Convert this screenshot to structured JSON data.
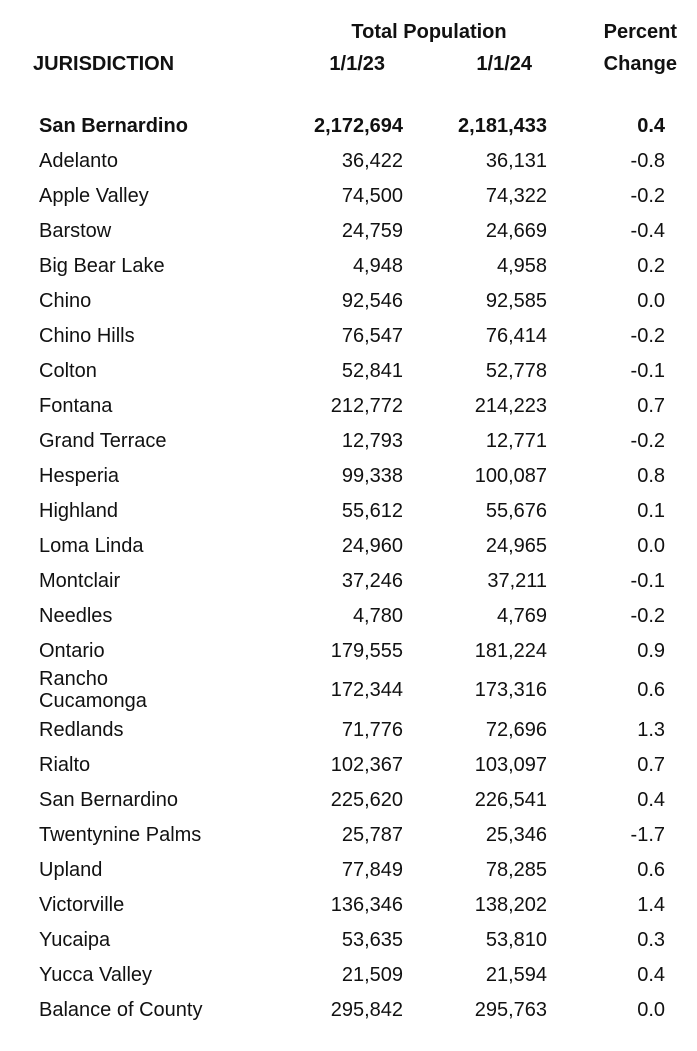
{
  "colors": {
    "text": "#111111",
    "background": "#ffffff"
  },
  "table": {
    "header": {
      "jurisdiction": "JURISDICTION",
      "group_title": "Total Population",
      "col_2023": "1/1/23",
      "col_2024": "1/1/24",
      "percent_line1": "Percent",
      "percent_line2": "Change"
    },
    "rows": [
      {
        "name": "San Bernardino",
        "pop_2023": "2,172,694",
        "pop_2024": "2,181,433",
        "pct_change": "0.4",
        "bold": true
      },
      {
        "name": "Adelanto",
        "pop_2023": "36,422",
        "pop_2024": "36,131",
        "pct_change": "-0.8",
        "bold": false
      },
      {
        "name": "Apple Valley",
        "pop_2023": "74,500",
        "pop_2024": "74,322",
        "pct_change": "-0.2",
        "bold": false
      },
      {
        "name": "Barstow",
        "pop_2023": "24,759",
        "pop_2024": "24,669",
        "pct_change": "-0.4",
        "bold": false
      },
      {
        "name": "Big Bear Lake",
        "pop_2023": "4,948",
        "pop_2024": "4,958",
        "pct_change": "0.2",
        "bold": false
      },
      {
        "name": "Chino",
        "pop_2023": "92,546",
        "pop_2024": "92,585",
        "pct_change": "0.0",
        "bold": false
      },
      {
        "name": "Chino Hills",
        "pop_2023": "76,547",
        "pop_2024": "76,414",
        "pct_change": "-0.2",
        "bold": false
      },
      {
        "name": "Colton",
        "pop_2023": "52,841",
        "pop_2024": "52,778",
        "pct_change": "-0.1",
        "bold": false
      },
      {
        "name": "Fontana",
        "pop_2023": "212,772",
        "pop_2024": "214,223",
        "pct_change": "0.7",
        "bold": false
      },
      {
        "name": "Grand Terrace",
        "pop_2023": "12,793",
        "pop_2024": "12,771",
        "pct_change": "-0.2",
        "bold": false
      },
      {
        "name": "Hesperia",
        "pop_2023": "99,338",
        "pop_2024": "100,087",
        "pct_change": "0.8",
        "bold": false
      },
      {
        "name": "Highland",
        "pop_2023": "55,612",
        "pop_2024": "55,676",
        "pct_change": "0.1",
        "bold": false
      },
      {
        "name": "Loma Linda",
        "pop_2023": "24,960",
        "pop_2024": "24,965",
        "pct_change": "0.0",
        "bold": false
      },
      {
        "name": "Montclair",
        "pop_2023": "37,246",
        "pop_2024": "37,211",
        "pct_change": "-0.1",
        "bold": false
      },
      {
        "name": "Needles",
        "pop_2023": "4,780",
        "pop_2024": "4,769",
        "pct_change": "-0.2",
        "bold": false
      },
      {
        "name": "Ontario",
        "pop_2023": "179,555",
        "pop_2024": "181,224",
        "pct_change": "0.9",
        "bold": false
      },
      {
        "name": "Rancho\nCucamonga",
        "pop_2023": "172,344",
        "pop_2024": "173,316",
        "pct_change": "0.6",
        "bold": false
      },
      {
        "name": "Redlands",
        "pop_2023": "71,776",
        "pop_2024": "72,696",
        "pct_change": "1.3",
        "bold": false
      },
      {
        "name": "Rialto",
        "pop_2023": "102,367",
        "pop_2024": "103,097",
        "pct_change": "0.7",
        "bold": false
      },
      {
        "name": "San Bernardino",
        "pop_2023": "225,620",
        "pop_2024": "226,541",
        "pct_change": "0.4",
        "bold": false
      },
      {
        "name": "Twentynine Palms",
        "pop_2023": "25,787",
        "pop_2024": "25,346",
        "pct_change": "-1.7",
        "bold": false
      },
      {
        "name": "Upland",
        "pop_2023": "77,849",
        "pop_2024": "78,285",
        "pct_change": "0.6",
        "bold": false
      },
      {
        "name": "Victorville",
        "pop_2023": "136,346",
        "pop_2024": "138,202",
        "pct_change": "1.4",
        "bold": false
      },
      {
        "name": "Yucaipa",
        "pop_2023": "53,635",
        "pop_2024": "53,810",
        "pct_change": "0.3",
        "bold": false
      },
      {
        "name": "Yucca Valley",
        "pop_2023": "21,509",
        "pop_2024": "21,594",
        "pct_change": "0.4",
        "bold": false
      },
      {
        "name": "Balance of County",
        "pop_2023": "295,842",
        "pop_2024": "295,763",
        "pct_change": "0.0",
        "bold": false
      }
    ]
  }
}
